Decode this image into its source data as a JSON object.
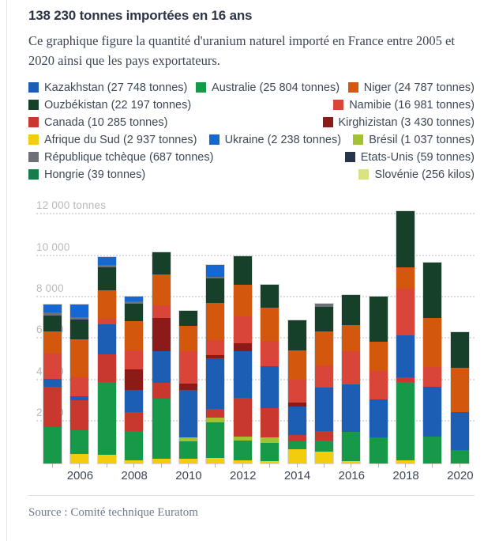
{
  "header": {
    "title": "138 230 tonnes importées en 16 ans",
    "description": "Ce graphique figure la quantité d'uranium naturel importé en France entre 2005 et 2020 ainsi que les pays exportateurs."
  },
  "colors": {
    "kazakhstan": "#1d5eb5",
    "australie": "#169a49",
    "niger": "#d4570e",
    "ouzbekistan": "#17402b",
    "namibie": "#da453a",
    "canada": "#c9382f",
    "kirghizistan": "#8c1b17",
    "afrique_du_sud": "#f2cd0d",
    "ukraine": "#1567d2",
    "bresil": "#a2c233",
    "republique_tcheque": "#6d7177",
    "etats_unis": "#26354a",
    "hongrie": "#157d4a",
    "slovenie": "#d9e381"
  },
  "legend": {
    "rows": [
      [
        {
          "label": "Kazakhstan (27 748 tonnes)",
          "color": "#1d5eb5"
        },
        {
          "label": "Australie (25 804 tonnes)",
          "color": "#169a49"
        },
        {
          "label": "Niger (24 787 tonnes)",
          "color": "#d4570e"
        }
      ],
      [
        {
          "label": "Ouzbékistan (22 197 tonnes)",
          "color": "#17402b"
        },
        {
          "label": "Namibie (16 981 tonnes)",
          "color": "#da453a"
        }
      ],
      [
        {
          "label": "Canada (10 285 tonnes)",
          "color": "#c9382f"
        },
        {
          "label": "Kirghizistan (3 430 tonnes)",
          "color": "#8c1b17"
        }
      ],
      [
        {
          "label": "Afrique du Sud (2 937 tonnes)",
          "color": "#f2cd0d"
        },
        {
          "label": "Ukraine (2 238 tonnes)",
          "color": "#1567d2"
        },
        {
          "label": "Brésil (1 037 tonnes)",
          "color": "#a2c233"
        }
      ],
      [
        {
          "label": "République tchèque (687 tonnes)",
          "color": "#6d7177"
        },
        {
          "label": "Etats-Unis (59 tonnes)",
          "color": "#26354a"
        }
      ],
      [
        {
          "label": "Hongrie (39 tonnes)",
          "color": "#157d4a"
        },
        {
          "label": "Slovénie (256 kilos)",
          "color": "#d9e381"
        }
      ]
    ]
  },
  "chart_data": {
    "type": "bar",
    "stacked": true,
    "title": "138 230 tonnes importées en 16 ans",
    "xlabel": "",
    "ylabel": "tonnes",
    "ylim": [
      0,
      12610
    ],
    "grid": "dotted-horizontal",
    "legend_position": "top",
    "x": [
      2005,
      2006,
      2007,
      2008,
      2009,
      2010,
      2011,
      2012,
      2013,
      2014,
      2015,
      2016,
      2017,
      2018,
      2019,
      2020
    ],
    "x_labels": [
      "",
      "2006",
      "",
      "2008",
      "",
      "2010",
      "",
      "2012",
      "",
      "2014",
      "",
      "2016",
      "",
      "2018",
      "",
      "2020"
    ],
    "yticks": [
      {
        "value": 2000,
        "label": "2 000"
      },
      {
        "value": 4000,
        "label": "4 000"
      },
      {
        "value": 6000,
        "label": "6 000"
      },
      {
        "value": 8000,
        "label": "8 000"
      },
      {
        "value": 10000,
        "label": "10 000"
      },
      {
        "value": 12000,
        "label": "12 000 tonnes"
      }
    ],
    "note": "values in tonnes, estimated from bar segments; stack order bottom to top",
    "series": [
      {
        "name": "Afrique du Sud",
        "color": "#f2cd0d",
        "values": [
          0,
          450,
          400,
          150,
          200,
          200,
          250,
          150,
          80,
          650,
          550,
          80,
          0,
          130,
          0,
          0
        ]
      },
      {
        "name": "Australie",
        "color": "#169a49",
        "values": [
          1750,
          1150,
          3500,
          1400,
          2900,
          840,
          1710,
          955,
          900,
          410,
          535,
          1440,
          1250,
          3800,
          1270,
          640
        ]
      },
      {
        "name": "Brésil",
        "color": "#a2c233",
        "values": [
          0,
          0,
          0,
          0,
          0,
          190,
          230,
          190,
          260,
          0,
          0,
          0,
          0,
          0,
          0,
          0
        ]
      },
      {
        "name": "Canada",
        "color": "#c9382f",
        "values": [
          1950,
          1450,
          1340,
          930,
          760,
          0,
          410,
          1850,
          1420,
          280,
          450,
          0,
          0,
          220,
          0,
          0
        ]
      },
      {
        "name": "Kazakhstan",
        "color": "#1d5eb5",
        "values": [
          380,
          190,
          1460,
          1040,
          1530,
          2290,
          2450,
          2250,
          2010,
          1380,
          2130,
          2280,
          1810,
          2000,
          2400,
          1820
        ]
      },
      {
        "name": "Kirghizistan",
        "color": "#8c1b17",
        "values": [
          0,
          0,
          0,
          990,
          1600,
          320,
          170,
          380,
          0,
          190,
          0,
          0,
          0,
          0,
          0,
          0
        ]
      },
      {
        "name": "Namibie",
        "color": "#da453a",
        "values": [
          1210,
          890,
          260,
          920,
          640,
          1570,
          730,
          1290,
          1210,
          1110,
          1060,
          1620,
          1400,
          2270,
          960,
          0
        ]
      },
      {
        "name": "Niger",
        "color": "#d4570e",
        "values": [
          1080,
          1850,
          1400,
          1440,
          1460,
          1210,
          1780,
          1550,
          1640,
          1440,
          1650,
          1250,
          1410,
          1040,
          2390,
          2130
        ]
      },
      {
        "name": "Ouzbékistan",
        "color": "#17402b",
        "values": [
          730,
          930,
          1080,
          820,
          1100,
          730,
          1180,
          1360,
          1100,
          1440,
          1180,
          1460,
          2170,
          2710,
          2650,
          1730
        ]
      },
      {
        "name": "Etats-Unis",
        "color": "#26354a",
        "values": [
          30,
          30,
          0,
          0,
          0,
          0,
          0,
          0,
          0,
          0,
          0,
          0,
          0,
          0,
          0,
          0
        ]
      },
      {
        "name": "République tchèque",
        "color": "#6d7177",
        "values": [
          140,
          120,
          140,
          100,
          0,
          0,
          80,
          0,
          0,
          0,
          140,
          0,
          0,
          0,
          0,
          0
        ]
      },
      {
        "name": "Ukraine",
        "color": "#1567d2",
        "values": [
          400,
          600,
          360,
          260,
          0,
          0,
          560,
          0,
          0,
          0,
          0,
          0,
          0,
          0,
          0,
          0
        ]
      },
      {
        "name": "Hongrie",
        "color": "#157d4a",
        "values": [
          0,
          0,
          0,
          0,
          0,
          0,
          0,
          0,
          0,
          0,
          0,
          0,
          0,
          0,
          0,
          0
        ]
      },
      {
        "name": "Slovénie",
        "color": "#d9e381",
        "values": [
          0,
          0,
          0,
          0,
          0,
          0,
          0,
          0,
          0,
          0,
          0,
          0,
          0,
          0,
          0,
          0
        ]
      }
    ]
  },
  "footer": {
    "source": "Source : Comité technique Euratom"
  }
}
